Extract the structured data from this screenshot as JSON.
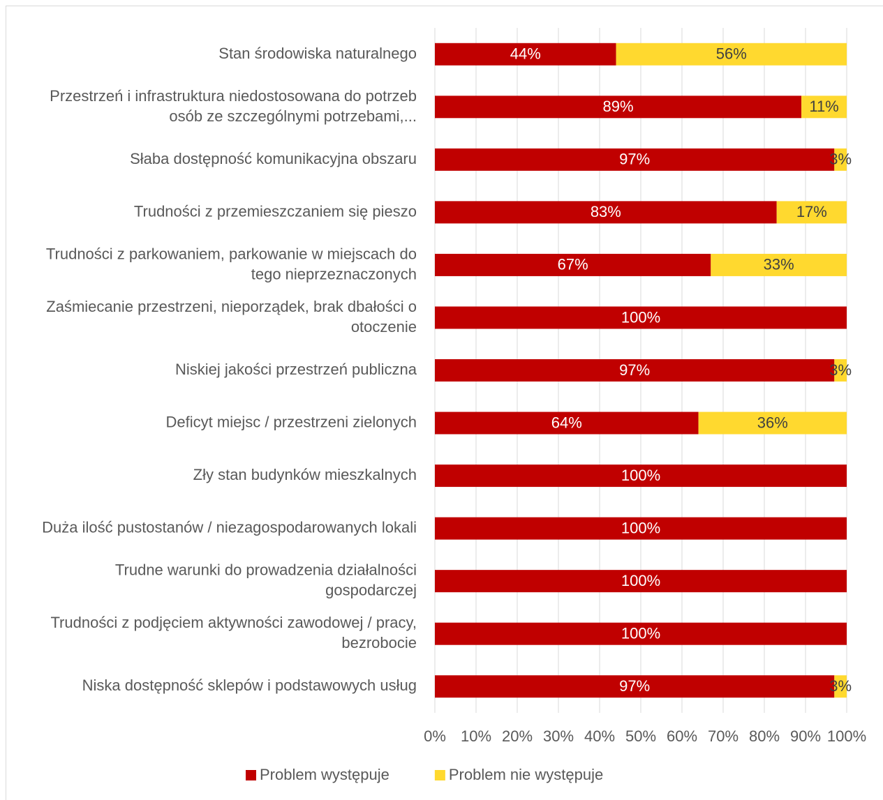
{
  "chart_data": {
    "type": "stacked_barh",
    "categories": [
      "Stan środowiska naturalnego",
      "Przestrzeń i infrastruktura niedostosowana do potrzeb osób ze szczególnymi potrzebami,...",
      "Słaba dostępność komunikacyjna obszaru",
      "Trudności z przemieszczaniem się pieszo",
      "Trudności z parkowaniem, parkowanie w miejscach do tego nieprzeznaczonych",
      "Zaśmiecanie przestrzeni, nieporządek, brak dbałości o otoczenie",
      "Niskiej jakości przestrzeń publiczna",
      "Deficyt miejsc / przestrzeni zielonych",
      "Zły stan budynków mieszkalnych",
      "Duża ilość pustostanów / niezagospodarowanych lokali",
      "Trudne warunki do prowadzenia działalności gospodarczej",
      "Trudności z podjęciem aktywności zawodowej / pracy, bezrobocie",
      "Niska dostępność sklepów i podstawowych usług"
    ],
    "series": [
      {
        "name": "Problem występuje",
        "color": "#c00000",
        "label_color": "#ffffff",
        "values": [
          44,
          89,
          97,
          83,
          67,
          100,
          97,
          64,
          100,
          100,
          100,
          100,
          97
        ],
        "value_labels": [
          "44%",
          "89%",
          "97%",
          "83%",
          "67%",
          "100%",
          "97%",
          "64%",
          "100%",
          "100%",
          "100%",
          "100%",
          "97%"
        ]
      },
      {
        "name": "Problem nie występuje",
        "color": "#ffd92f",
        "label_color": "#404040",
        "values": [
          56,
          11,
          3,
          17,
          33,
          0,
          3,
          36,
          0,
          0,
          0,
          0,
          3
        ],
        "value_labels": [
          "56%",
          "11%",
          "3%",
          "17%",
          "33%",
          null,
          "3%",
          "36%",
          null,
          null,
          null,
          null,
          "3%"
        ]
      }
    ],
    "xlim": [
      0,
      100
    ],
    "xticks": [
      {
        "value": 0,
        "label": "0%"
      },
      {
        "value": 10,
        "label": "10%"
      },
      {
        "value": 20,
        "label": "20%"
      },
      {
        "value": 30,
        "label": "30%"
      },
      {
        "value": 40,
        "label": "40%"
      },
      {
        "value": 50,
        "label": "50%"
      },
      {
        "value": 60,
        "label": "60%"
      },
      {
        "value": 70,
        "label": "70%"
      },
      {
        "value": 80,
        "label": "80%"
      },
      {
        "value": 90,
        "label": "90%"
      },
      {
        "value": 100,
        "label": "100%"
      }
    ],
    "grid": true,
    "legend": "bottom"
  }
}
